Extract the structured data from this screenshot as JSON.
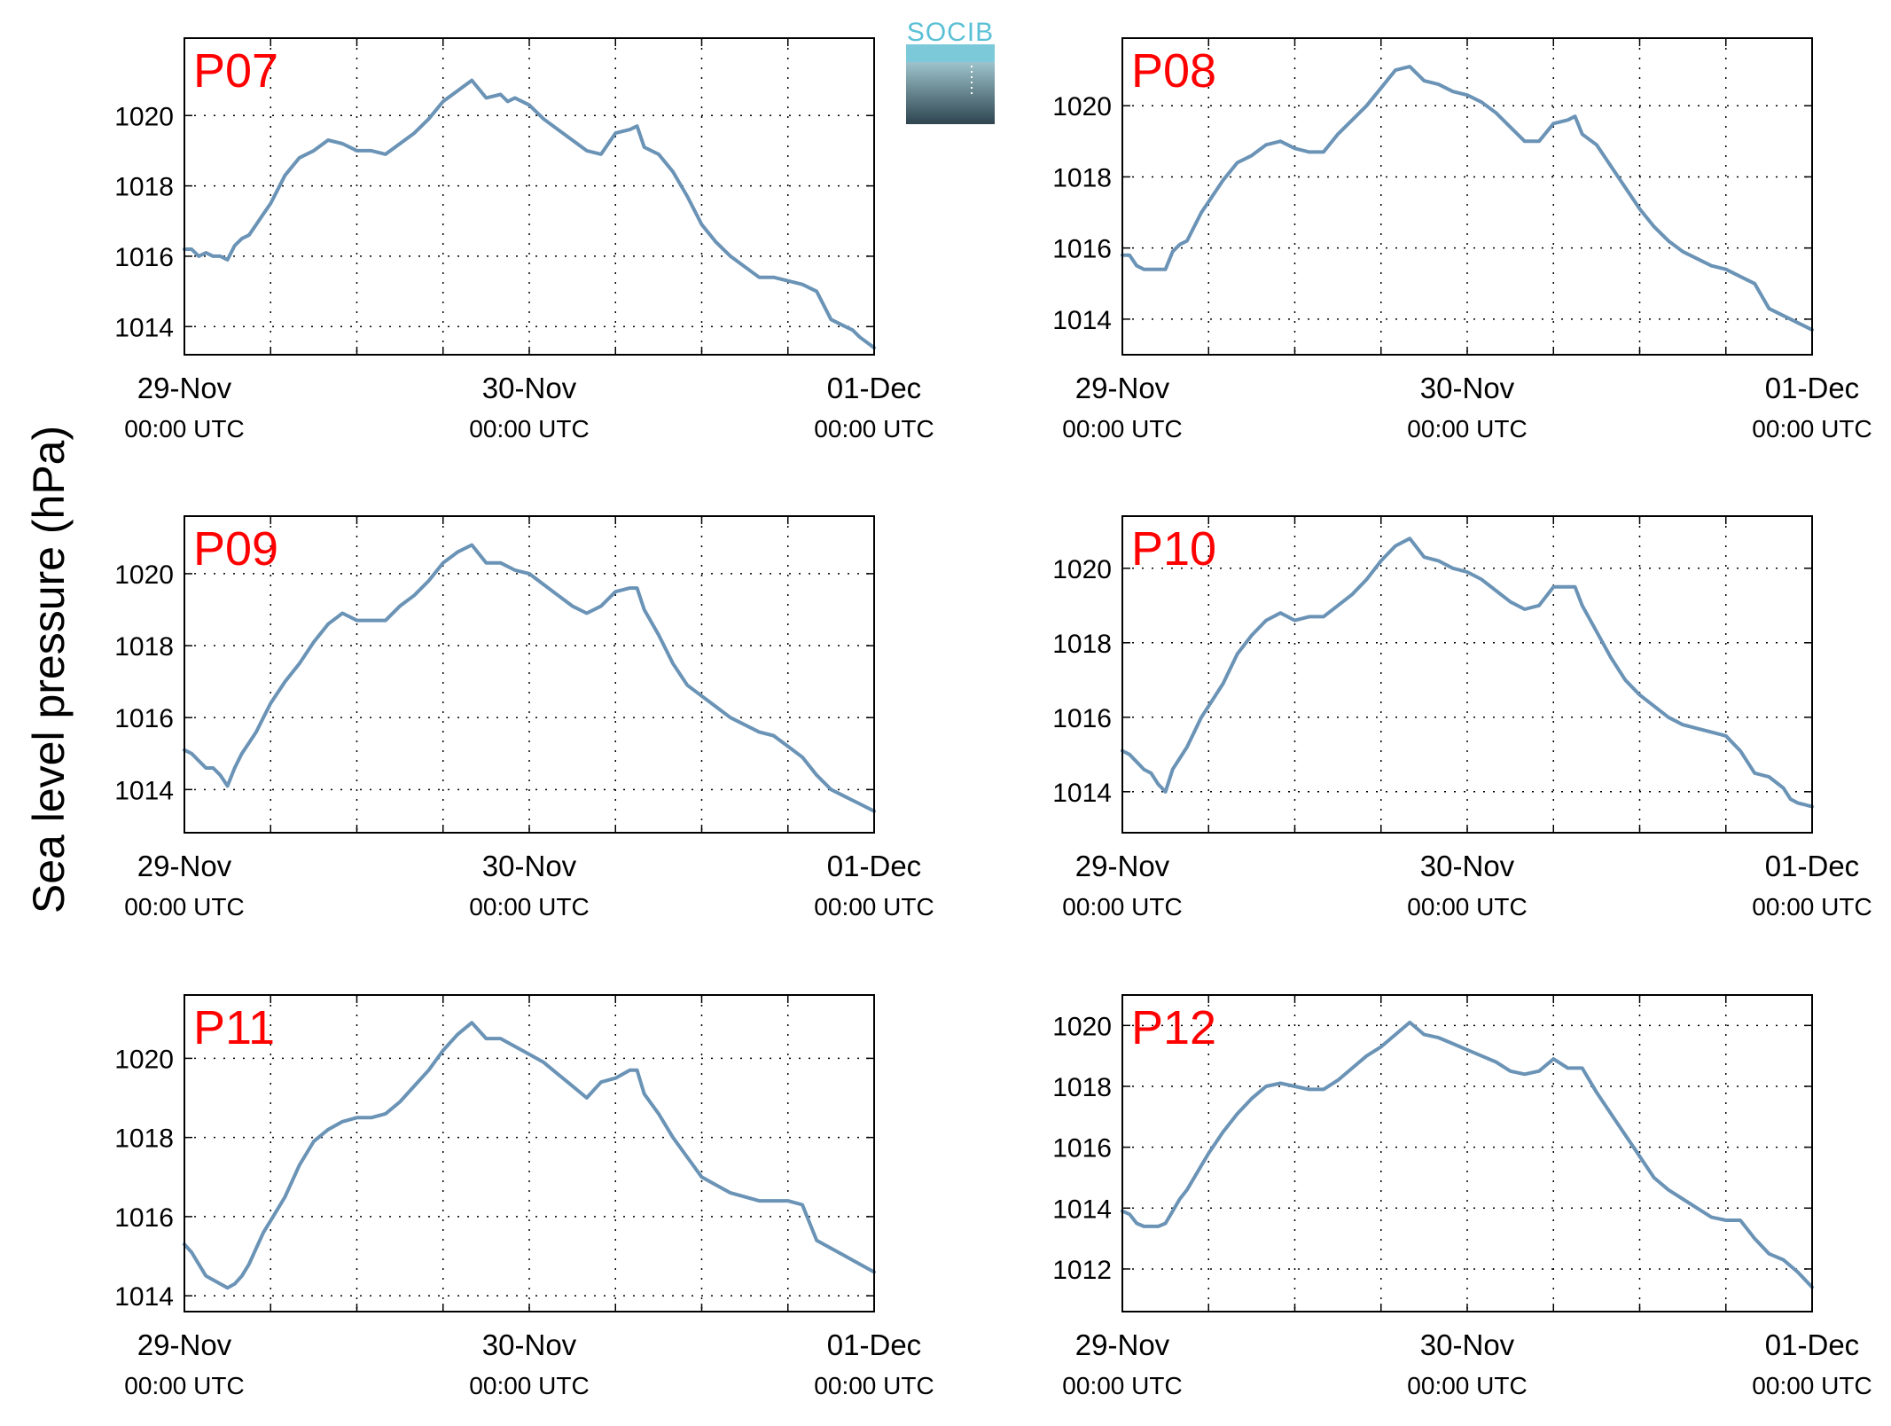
{
  "figure": {
    "ylabel": "Sea level pressure (hPa)",
    "logo_text": "SOCIB",
    "colors": {
      "line": "#6a93b6",
      "panel_label": "#ff0000",
      "logo_text": "#5bc0d6",
      "logo_dark": "#2e4550"
    }
  },
  "chart_data": [
    {
      "type": "line",
      "panel_label": "P07",
      "xlim": [
        0,
        48
      ],
      "ylim": [
        1013.2,
        1022.2
      ],
      "yticks": [
        1014,
        1016,
        1018,
        1020
      ],
      "x_ticks": [
        {
          "x": 0,
          "date": "29-Nov",
          "time": "00:00 UTC"
        },
        {
          "x": 24,
          "date": "30-Nov",
          "time": "00:00 UTC"
        },
        {
          "x": 48,
          "date": "01-Dec",
          "time": "00:00 UTC"
        }
      ],
      "grid": true,
      "series": [
        {
          "x": [
            0,
            0.5,
            1,
            1.5,
            2,
            2.5,
            3,
            3.5,
            4,
            4.5,
            5,
            5.5,
            6,
            7,
            8,
            9,
            10,
            11,
            12,
            13,
            14,
            15,
            16,
            17,
            18,
            19,
            20,
            21,
            22,
            22.5,
            23,
            24,
            25,
            26,
            27,
            28,
            29,
            30,
            31,
            31.5,
            32,
            33,
            34,
            35,
            36,
            37,
            38,
            39,
            40,
            41,
            42,
            43,
            44,
            45,
            46,
            46.5,
            47,
            48
          ],
          "y": [
            1016.2,
            1016.2,
            1016,
            1016.1,
            1016,
            1016,
            1015.9,
            1016.3,
            1016.5,
            1016.6,
            1016.9,
            1017.2,
            1017.5,
            1018.3,
            1018.8,
            1019,
            1019.3,
            1019.2,
            1019,
            1019,
            1018.9,
            1019.2,
            1019.5,
            1019.9,
            1020.4,
            1020.7,
            1021,
            1020.5,
            1020.6,
            1020.4,
            1020.5,
            1020.3,
            1019.9,
            1019.6,
            1019.3,
            1019,
            1018.9,
            1019.5,
            1019.6,
            1019.7,
            1019.1,
            1018.9,
            1018.4,
            1017.7,
            1016.9,
            1016.4,
            1016,
            1015.7,
            1015.4,
            1015.4,
            1015.3,
            1015.2,
            1015,
            1014.2,
            1014,
            1013.9,
            1013.7,
            1013.4
          ]
        }
      ]
    },
    {
      "type": "line",
      "panel_label": "P08",
      "xlim": [
        0,
        48
      ],
      "ylim": [
        1013,
        1021.9
      ],
      "yticks": [
        1014,
        1016,
        1018,
        1020
      ],
      "x_ticks": [
        {
          "x": 0,
          "date": "29-Nov",
          "time": "00:00 UTC"
        },
        {
          "x": 24,
          "date": "30-Nov",
          "time": "00:00 UTC"
        },
        {
          "x": 48,
          "date": "01-Dec",
          "time": "00:00 UTC"
        }
      ],
      "grid": true,
      "series": [
        {
          "x": [
            0,
            0.5,
            1,
            1.5,
            2,
            2.5,
            3,
            3.5,
            4,
            4.5,
            5,
            5.5,
            6,
            7,
            8,
            9,
            10,
            11,
            12,
            13,
            14,
            15,
            16,
            17,
            18,
            19,
            20,
            21,
            22,
            23,
            24,
            25,
            26,
            27,
            28,
            29,
            30,
            31,
            31.5,
            32,
            33,
            34,
            35,
            36,
            37,
            38,
            39,
            40,
            41,
            42,
            43,
            44,
            45,
            46,
            46.5,
            47,
            48
          ],
          "y": [
            1015.8,
            1015.8,
            1015.5,
            1015.4,
            1015.4,
            1015.4,
            1015.4,
            1015.9,
            1016.1,
            1016.2,
            1016.6,
            1017,
            1017.3,
            1017.9,
            1018.4,
            1018.6,
            1018.9,
            1019,
            1018.8,
            1018.7,
            1018.7,
            1019.2,
            1019.6,
            1020,
            1020.5,
            1021,
            1021.1,
            1020.7,
            1020.6,
            1020.4,
            1020.3,
            1020.1,
            1019.8,
            1019.4,
            1019,
            1019,
            1019.5,
            1019.6,
            1019.7,
            1019.2,
            1018.9,
            1018.3,
            1017.7,
            1017.1,
            1016.6,
            1016.2,
            1015.9,
            1015.7,
            1015.5,
            1015.4,
            1015.2,
            1015,
            1014.3,
            1014.1,
            1014,
            1013.9,
            1013.7
          ]
        }
      ]
    },
    {
      "type": "line",
      "panel_label": "P09",
      "xlim": [
        0,
        48
      ],
      "ylim": [
        1012.8,
        1021.6
      ],
      "yticks": [
        1014,
        1016,
        1018,
        1020
      ],
      "x_ticks": [
        {
          "x": 0,
          "date": "29-Nov",
          "time": "00:00 UTC"
        },
        {
          "x": 24,
          "date": "30-Nov",
          "time": "00:00 UTC"
        },
        {
          "x": 48,
          "date": "01-Dec",
          "time": "00:00 UTC"
        }
      ],
      "grid": true,
      "series": [
        {
          "x": [
            0,
            0.5,
            1,
            1.5,
            2,
            2.5,
            3,
            3.5,
            4,
            4.5,
            5,
            5.5,
            6,
            7,
            8,
            9,
            10,
            11,
            12,
            13,
            14,
            15,
            16,
            17,
            18,
            19,
            20,
            21,
            22,
            23,
            24,
            25,
            26,
            27,
            28,
            29,
            30,
            31,
            31.5,
            32,
            33,
            34,
            35,
            36,
            37,
            38,
            39,
            40,
            41,
            42,
            43,
            44,
            45,
            46,
            46.5,
            47,
            48
          ],
          "y": [
            1015.1,
            1015,
            1014.8,
            1014.6,
            1014.6,
            1014.4,
            1014.1,
            1014.6,
            1015,
            1015.3,
            1015.6,
            1016,
            1016.4,
            1017,
            1017.5,
            1018.1,
            1018.6,
            1018.9,
            1018.7,
            1018.7,
            1018.7,
            1019.1,
            1019.4,
            1019.8,
            1020.3,
            1020.6,
            1020.8,
            1020.3,
            1020.3,
            1020.1,
            1020,
            1019.7,
            1019.4,
            1019.1,
            1018.9,
            1019.1,
            1019.5,
            1019.6,
            1019.6,
            1019,
            1018.3,
            1017.5,
            1016.9,
            1016.6,
            1016.3,
            1016,
            1015.8,
            1015.6,
            1015.5,
            1015.2,
            1014.9,
            1014.4,
            1014,
            1013.8,
            1013.7,
            1013.6,
            1013.4
          ]
        }
      ]
    },
    {
      "type": "line",
      "panel_label": "P10",
      "xlim": [
        0,
        48
      ],
      "ylim": [
        1012.9,
        1021.4
      ],
      "yticks": [
        1014,
        1016,
        1018,
        1020
      ],
      "x_ticks": [
        {
          "x": 0,
          "date": "29-Nov",
          "time": "00:00 UTC"
        },
        {
          "x": 24,
          "date": "30-Nov",
          "time": "00:00 UTC"
        },
        {
          "x": 48,
          "date": "01-Dec",
          "time": "00:00 UTC"
        }
      ],
      "grid": true,
      "series": [
        {
          "x": [
            0,
            0.5,
            1,
            1.5,
            2,
            2.5,
            3,
            3.5,
            4,
            4.5,
            5,
            5.5,
            6,
            7,
            8,
            9,
            10,
            11,
            12,
            13,
            14,
            15,
            16,
            17,
            18,
            19,
            20,
            21,
            22,
            23,
            24,
            25,
            26,
            27,
            28,
            29,
            30,
            31,
            31.5,
            32,
            33,
            34,
            35,
            36,
            37,
            38,
            39,
            40,
            41,
            42,
            43,
            44,
            45,
            46,
            46.5,
            47,
            48
          ],
          "y": [
            1015.1,
            1015,
            1014.8,
            1014.6,
            1014.5,
            1014.2,
            1014,
            1014.6,
            1014.9,
            1015.2,
            1015.6,
            1016,
            1016.3,
            1016.9,
            1017.7,
            1018.2,
            1018.6,
            1018.8,
            1018.6,
            1018.7,
            1018.7,
            1019,
            1019.3,
            1019.7,
            1020.2,
            1020.6,
            1020.8,
            1020.3,
            1020.2,
            1020,
            1019.9,
            1019.7,
            1019.4,
            1019.1,
            1018.9,
            1019,
            1019.5,
            1019.5,
            1019.5,
            1019,
            1018.3,
            1017.6,
            1017,
            1016.6,
            1016.3,
            1016,
            1015.8,
            1015.7,
            1015.6,
            1015.5,
            1015.1,
            1014.5,
            1014.4,
            1014.1,
            1013.8,
            1013.7,
            1013.6
          ]
        }
      ]
    },
    {
      "type": "line",
      "panel_label": "P11",
      "xlim": [
        0,
        48
      ],
      "ylim": [
        1013.6,
        1021.6
      ],
      "yticks": [
        1014,
        1016,
        1018,
        1020
      ],
      "x_ticks": [
        {
          "x": 0,
          "date": "29-Nov",
          "time": "00:00 UTC"
        },
        {
          "x": 24,
          "date": "30-Nov",
          "time": "00:00 UTC"
        },
        {
          "x": 48,
          "date": "01-Dec",
          "time": "00:00 UTC"
        }
      ],
      "grid": true,
      "series": [
        {
          "x": [
            0,
            0.5,
            1,
            1.5,
            2,
            2.5,
            3,
            3.5,
            4,
            4.5,
            5,
            5.5,
            6,
            7,
            8,
            9,
            10,
            11,
            12,
            13,
            14,
            15,
            16,
            17,
            18,
            19,
            20,
            21,
            22,
            23,
            24,
            25,
            26,
            27,
            28,
            29,
            30,
            31,
            31.5,
            32,
            33,
            34,
            35,
            36,
            37,
            38,
            39,
            40,
            41,
            42,
            43,
            44,
            45,
            46,
            46.5,
            47,
            48
          ],
          "y": [
            1015.3,
            1015.1,
            1014.8,
            1014.5,
            1014.4,
            1014.3,
            1014.2,
            1014.3,
            1014.5,
            1014.8,
            1015.2,
            1015.6,
            1015.9,
            1016.5,
            1017.3,
            1017.9,
            1018.2,
            1018.4,
            1018.5,
            1018.5,
            1018.6,
            1018.9,
            1019.3,
            1019.7,
            1020.2,
            1020.6,
            1020.9,
            1020.5,
            1020.5,
            1020.3,
            1020.1,
            1019.9,
            1019.6,
            1019.3,
            1019,
            1019.4,
            1019.5,
            1019.7,
            1019.7,
            1019.1,
            1018.6,
            1018,
            1017.5,
            1017,
            1016.8,
            1016.6,
            1016.5,
            1016.4,
            1016.4,
            1016.4,
            1016.3,
            1015.4,
            1015.2,
            1015,
            1014.9,
            1014.8,
            1014.6
          ]
        }
      ]
    },
    {
      "type": "line",
      "panel_label": "P12",
      "xlim": [
        0,
        48
      ],
      "ylim": [
        1010.6,
        1021
      ],
      "yticks": [
        1012,
        1014,
        1016,
        1018,
        1020
      ],
      "x_ticks": [
        {
          "x": 0,
          "date": "29-Nov",
          "time": "00:00 UTC"
        },
        {
          "x": 24,
          "date": "30-Nov",
          "time": "00:00 UTC"
        },
        {
          "x": 48,
          "date": "01-Dec",
          "time": "00:00 UTC"
        }
      ],
      "grid": true,
      "series": [
        {
          "x": [
            0,
            0.5,
            1,
            1.5,
            2,
            2.5,
            3,
            3.5,
            4,
            4.5,
            5,
            5.5,
            6,
            7,
            8,
            9,
            10,
            11,
            12,
            13,
            14,
            15,
            16,
            17,
            18,
            19,
            20,
            21,
            22,
            23,
            24,
            25,
            26,
            27,
            28,
            29,
            30,
            31,
            31.5,
            32,
            33,
            34,
            35,
            36,
            37,
            38,
            39,
            40,
            41,
            42,
            43,
            44,
            45,
            46,
            46.5,
            47,
            48
          ],
          "y": [
            1013.9,
            1013.8,
            1013.5,
            1013.4,
            1013.4,
            1013.4,
            1013.5,
            1013.9,
            1014.3,
            1014.6,
            1015,
            1015.4,
            1015.8,
            1016.5,
            1017.1,
            1017.6,
            1018,
            1018.1,
            1018,
            1017.9,
            1017.9,
            1018.2,
            1018.6,
            1019,
            1019.3,
            1019.7,
            1020.1,
            1019.7,
            1019.6,
            1019.4,
            1019.2,
            1019,
            1018.8,
            1018.5,
            1018.4,
            1018.5,
            1018.9,
            1018.6,
            1018.6,
            1018.6,
            1017.8,
            1017.1,
            1016.4,
            1015.7,
            1015,
            1014.6,
            1014.3,
            1014,
            1013.7,
            1013.6,
            1013.6,
            1013,
            1012.5,
            1012.3,
            1012.1,
            1011.9,
            1011.4
          ]
        }
      ]
    }
  ]
}
